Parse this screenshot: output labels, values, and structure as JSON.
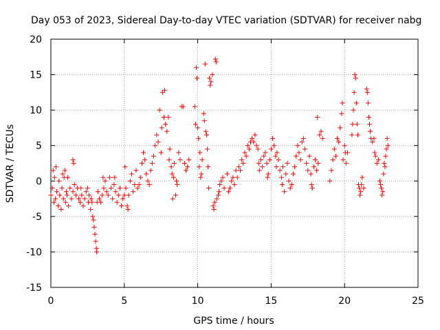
{
  "chart_data": {
    "type": "scatter",
    "title": "Day 053 of 2023, Sidereal Day-to-day VTEC variation (SDTVAR) for receiver nabg",
    "xlabel": "GPS time / hours",
    "ylabel": "SDTVAR / TECUs",
    "xlim": [
      0,
      25
    ],
    "ylim": [
      -15,
      20
    ],
    "xticks": [
      0,
      5,
      10,
      15,
      20,
      25
    ],
    "yticks": [
      -15,
      -10,
      -5,
      0,
      5,
      10,
      15,
      20
    ],
    "grid": true,
    "marker": "+",
    "color": "#ff0000",
    "series": [
      {
        "name": "SDTVAR",
        "points": [
          [
            0.0,
            -2.0
          ],
          [
            0.1,
            -1.0
          ],
          [
            0.15,
            1.5
          ],
          [
            0.2,
            -3.0
          ],
          [
            0.25,
            0.5
          ],
          [
            0.3,
            -2.5
          ],
          [
            0.35,
            2.0
          ],
          [
            0.4,
            -1.5
          ],
          [
            0.5,
            -3.5
          ],
          [
            0.55,
            0.0
          ],
          [
            0.6,
            -2.0
          ],
          [
            0.7,
            -4.0
          ],
          [
            0.75,
            -1.0
          ],
          [
            0.8,
            1.0
          ],
          [
            0.85,
            -2.5
          ],
          [
            0.9,
            0.5
          ],
          [
            0.95,
            1.5
          ],
          [
            1.0,
            -3.0
          ],
          [
            1.05,
            -1.5
          ],
          [
            1.1,
            -2.0
          ],
          [
            1.15,
            0.5
          ],
          [
            1.2,
            -3.5
          ],
          [
            1.3,
            -1.0
          ],
          [
            1.4,
            -2.5
          ],
          [
            1.5,
            -1.5
          ],
          [
            1.5,
            3.0
          ],
          [
            1.55,
            2.5
          ],
          [
            1.6,
            -0.5
          ],
          [
            1.7,
            -2.0
          ],
          [
            1.8,
            -1.0
          ],
          [
            1.9,
            -2.5
          ],
          [
            2.0,
            -3.0
          ],
          [
            2.05,
            -1.0
          ],
          [
            2.1,
            -2.0
          ],
          [
            2.2,
            -3.5
          ],
          [
            2.3,
            -2.5
          ],
          [
            2.4,
            -1.5
          ],
          [
            2.5,
            -1.0
          ],
          [
            2.55,
            -3.0
          ],
          [
            2.6,
            -2.0
          ],
          [
            2.7,
            -4.0
          ],
          [
            2.75,
            -2.5
          ],
          [
            2.8,
            -3.0
          ],
          [
            2.85,
            -5.0
          ],
          [
            2.9,
            -5.5
          ],
          [
            2.95,
            -6.5
          ],
          [
            3.0,
            -7.5
          ],
          [
            3.05,
            -8.5
          ],
          [
            3.1,
            -9.5
          ],
          [
            3.12,
            -10.0
          ],
          [
            3.15,
            -3.0
          ],
          [
            3.2,
            -1.5
          ],
          [
            3.3,
            -2.5
          ],
          [
            3.4,
            -3.0
          ],
          [
            3.5,
            -2.0
          ],
          [
            3.55,
            0.5
          ],
          [
            3.6,
            -1.0
          ],
          [
            3.7,
            0.0
          ],
          [
            3.8,
            -1.5
          ],
          [
            3.9,
            -2.0
          ],
          [
            4.0,
            0.5
          ],
          [
            4.1,
            -1.0
          ],
          [
            4.2,
            -2.5
          ],
          [
            4.3,
            -0.5
          ],
          [
            4.35,
            0.5
          ],
          [
            4.4,
            -1.5
          ],
          [
            4.5,
            -3.0
          ],
          [
            4.6,
            -2.0
          ],
          [
            4.7,
            -1.0
          ],
          [
            4.8,
            -3.5
          ],
          [
            4.9,
            -2.5
          ],
          [
            5.0,
            -2.0
          ],
          [
            5.05,
            2.0
          ],
          [
            5.1,
            -1.0
          ],
          [
            5.2,
            -3.5
          ],
          [
            5.25,
            -4.0
          ],
          [
            5.3,
            -2.0
          ],
          [
            5.4,
            0.0
          ],
          [
            5.5,
            1.0
          ],
          [
            5.6,
            -1.5
          ],
          [
            5.7,
            -0.5
          ],
          [
            5.8,
            1.5
          ],
          [
            5.9,
            -1.0
          ],
          [
            6.0,
            -0.5
          ],
          [
            6.1,
            0.5
          ],
          [
            6.2,
            2.5
          ],
          [
            6.3,
            4.0
          ],
          [
            6.4,
            3.0
          ],
          [
            6.5,
            1.0
          ],
          [
            6.6,
            0.0
          ],
          [
            6.7,
            -0.5
          ],
          [
            6.8,
            1.5
          ],
          [
            6.9,
            2.5
          ],
          [
            7.0,
            3.5
          ],
          [
            7.1,
            5.0
          ],
          [
            7.2,
            6.5
          ],
          [
            7.3,
            5.5
          ],
          [
            7.4,
            10.0
          ],
          [
            7.5,
            4.0
          ],
          [
            7.55,
            7.5
          ],
          [
            7.6,
            12.5
          ],
          [
            7.7,
            9.0
          ],
          [
            7.75,
            12.8
          ],
          [
            7.8,
            8.0
          ],
          [
            7.9,
            7.0
          ],
          [
            8.0,
            9.0
          ],
          [
            8.05,
            3.0
          ],
          [
            8.1,
            4.5
          ],
          [
            8.2,
            2.0
          ],
          [
            8.25,
            1.0
          ],
          [
            8.3,
            -2.5
          ],
          [
            8.35,
            0.5
          ],
          [
            8.4,
            2.5
          ],
          [
            8.5,
            -2.0
          ],
          [
            8.55,
            0.0
          ],
          [
            8.6,
            -0.5
          ],
          [
            8.7,
            4.0
          ],
          [
            8.8,
            3.0
          ],
          [
            8.9,
            10.5
          ],
          [
            9.0,
            10.5
          ],
          [
            9.1,
            2.5
          ],
          [
            9.2,
            1.5
          ],
          [
            9.3,
            2.0
          ],
          [
            9.4,
            3.0
          ],
          [
            9.8,
            10.5
          ],
          [
            9.85,
            8.0
          ],
          [
            9.9,
            16.0
          ],
          [
            9.95,
            14.5
          ],
          [
            10.0,
            7.5
          ],
          [
            10.05,
            6.0
          ],
          [
            10.1,
            2.0
          ],
          [
            10.15,
            4.0
          ],
          [
            10.2,
            0.5
          ],
          [
            10.25,
            1.0
          ],
          [
            10.3,
            3.0
          ],
          [
            10.4,
            9.5
          ],
          [
            10.45,
            8.5
          ],
          [
            10.5,
            16.5
          ],
          [
            10.55,
            7.0
          ],
          [
            10.6,
            6.5
          ],
          [
            10.65,
            4.5
          ],
          [
            10.7,
            2.0
          ],
          [
            10.75,
            -1.0
          ],
          [
            10.8,
            14.5
          ],
          [
            10.85,
            13.5
          ],
          [
            10.9,
            14.0
          ],
          [
            11.0,
            15.0
          ],
          [
            11.05,
            -3.5
          ],
          [
            11.1,
            -4.0
          ],
          [
            11.15,
            -3.0
          ],
          [
            11.2,
            17.2
          ],
          [
            11.25,
            16.8
          ],
          [
            11.3,
            -2.5
          ],
          [
            11.4,
            -2.0
          ],
          [
            11.45,
            -1.5
          ],
          [
            11.5,
            -0.5
          ],
          [
            11.6,
            0.0
          ],
          [
            11.7,
            0.5
          ],
          [
            11.8,
            -1.0
          ],
          [
            12.0,
            1.0
          ],
          [
            12.1,
            -1.5
          ],
          [
            12.2,
            -1.0
          ],
          [
            12.3,
            0.0
          ],
          [
            12.4,
            0.5
          ],
          [
            12.5,
            -0.5
          ],
          [
            12.6,
            1.5
          ],
          [
            12.7,
            0.5
          ],
          [
            12.8,
            2.0
          ],
          [
            12.9,
            1.5
          ],
          [
            13.0,
            3.0
          ],
          [
            13.1,
            2.5
          ],
          [
            13.2,
            4.0
          ],
          [
            13.3,
            3.5
          ],
          [
            13.4,
            5.0
          ],
          [
            13.5,
            4.5
          ],
          [
            13.6,
            5.5
          ],
          [
            13.7,
            6.0
          ],
          [
            13.8,
            5.5
          ],
          [
            13.9,
            6.5
          ],
          [
            14.0,
            5.0
          ],
          [
            14.1,
            4.5
          ],
          [
            14.15,
            2.5
          ],
          [
            14.2,
            1.5
          ],
          [
            14.3,
            3.0
          ],
          [
            14.4,
            2.0
          ],
          [
            14.5,
            3.5
          ],
          [
            14.6,
            4.0
          ],
          [
            14.7,
            2.5
          ],
          [
            14.75,
            0.5
          ],
          [
            14.8,
            1.0
          ],
          [
            14.9,
            3.0
          ],
          [
            15.0,
            4.5
          ],
          [
            15.1,
            6.0
          ],
          [
            15.2,
            5.0
          ],
          [
            15.3,
            3.5
          ],
          [
            15.35,
            2.0
          ],
          [
            15.4,
            4.0
          ],
          [
            15.5,
            3.0
          ],
          [
            15.6,
            1.5
          ],
          [
            15.7,
            0.5
          ],
          [
            15.75,
            -0.5
          ],
          [
            15.8,
            2.0
          ],
          [
            15.9,
            -1.5
          ],
          [
            16.0,
            1.0
          ],
          [
            16.1,
            2.5
          ],
          [
            16.2,
            0.0
          ],
          [
            16.3,
            -1.0
          ],
          [
            16.4,
            -0.5
          ],
          [
            16.5,
            1.0
          ],
          [
            16.6,
            2.0
          ],
          [
            16.7,
            3.5
          ],
          [
            16.8,
            5.0
          ],
          [
            16.9,
            4.0
          ],
          [
            17.0,
            3.0
          ],
          [
            17.1,
            5.5
          ],
          [
            17.2,
            6.0
          ],
          [
            17.3,
            4.5
          ],
          [
            17.4,
            2.5
          ],
          [
            17.5,
            1.5
          ],
          [
            17.6,
            3.5
          ],
          [
            17.7,
            1.0
          ],
          [
            17.75,
            -0.5
          ],
          [
            17.8,
            -1.0
          ],
          [
            17.9,
            2.0
          ],
          [
            18.0,
            3.0
          ],
          [
            18.1,
            1.5
          ],
          [
            18.15,
            9.0
          ],
          [
            18.2,
            2.5
          ],
          [
            18.3,
            6.5
          ],
          [
            18.4,
            7.0
          ],
          [
            18.5,
            6.0
          ],
          [
            19.0,
            0.0
          ],
          [
            19.1,
            1.5
          ],
          [
            19.2,
            3.0
          ],
          [
            19.3,
            4.5
          ],
          [
            19.4,
            3.5
          ],
          [
            19.5,
            6.0
          ],
          [
            19.6,
            5.5
          ],
          [
            19.7,
            7.5
          ],
          [
            19.8,
            9.5
          ],
          [
            19.85,
            11.0
          ],
          [
            19.9,
            3.0
          ],
          [
            20.0,
            5.0
          ],
          [
            20.05,
            4.0
          ],
          [
            20.1,
            2.5
          ],
          [
            20.2,
            4.0
          ],
          [
            20.5,
            6.5
          ],
          [
            20.55,
            8.0
          ],
          [
            20.6,
            10.0
          ],
          [
            20.65,
            12.5
          ],
          [
            20.7,
            15.0
          ],
          [
            20.75,
            14.5
          ],
          [
            20.8,
            11.0
          ],
          [
            20.85,
            8.0
          ],
          [
            20.9,
            6.5
          ],
          [
            20.95,
            -0.5
          ],
          [
            21.0,
            -1.0
          ],
          [
            21.05,
            -2.0
          ],
          [
            21.1,
            -1.5
          ],
          [
            21.15,
            -0.5
          ],
          [
            21.2,
            0.5
          ],
          [
            21.3,
            -1.0
          ],
          [
            21.5,
            13.0
          ],
          [
            21.55,
            12.5
          ],
          [
            21.6,
            11.0
          ],
          [
            21.65,
            9.0
          ],
          [
            21.7,
            8.0
          ],
          [
            21.75,
            7.0
          ],
          [
            21.8,
            6.0
          ],
          [
            21.9,
            5.5
          ],
          [
            22.0,
            6.0
          ],
          [
            22.05,
            4.0
          ],
          [
            22.1,
            3.5
          ],
          [
            22.2,
            2.5
          ],
          [
            22.3,
            3.0
          ],
          [
            22.4,
            0.0
          ],
          [
            22.45,
            -0.5
          ],
          [
            22.5,
            -1.0
          ],
          [
            22.55,
            -2.0
          ],
          [
            22.6,
            -1.5
          ],
          [
            22.65,
            1.0
          ],
          [
            22.7,
            2.5
          ],
          [
            22.75,
            2.0
          ],
          [
            22.8,
            3.5
          ],
          [
            22.85,
            4.5
          ],
          [
            22.9,
            6.0
          ],
          [
            22.95,
            5.0
          ]
        ]
      }
    ]
  }
}
